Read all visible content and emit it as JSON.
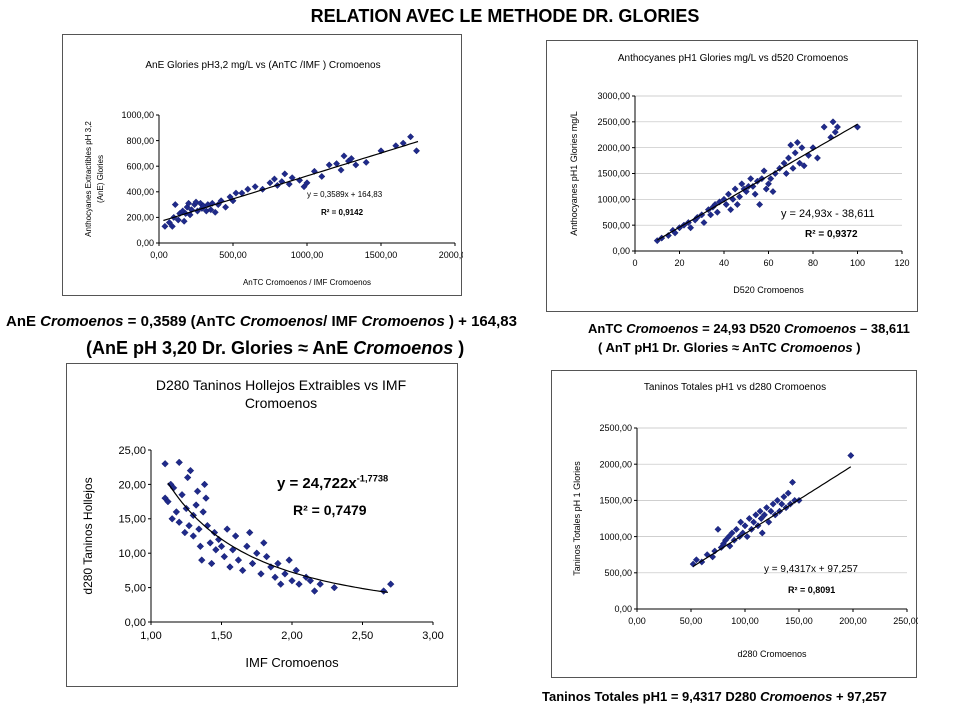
{
  "page_title": "RELATION AVEC LE METHODE DR. GLORIES",
  "captions": {
    "c1a": {
      "p1": "AnE ",
      "i1": "Cromoenos",
      "p2": " = 0,3589 (AnTC ",
      "i2": "Cromoenos",
      "p3": "/ IMF ",
      "i3": "Cromoenos",
      "p4": " ) + 164,83"
    },
    "c1b": {
      "p1": "(AnE pH 3,20 Dr. Glories ≈ AnE ",
      "i1": "Cromoenos",
      "p2": "  )"
    },
    "c2a": {
      "p1": "AnTC ",
      "i1": "Cromoenos",
      "p2": " = 24,93  D520 ",
      "i2": "Cromoenos",
      "p3": "  – 38,611"
    },
    "c2b": {
      "p1": "( AnT pH1 Dr. Glories ≈ AnTC ",
      "i1": "Cromoenos",
      "p2": " )"
    },
    "c3": {
      "p1": "Taninos Totales pH1 = 9,4317 D280 ",
      "i1": "Cromoenos",
      "p2": " + 97,257"
    }
  },
  "chart_data": [
    {
      "type": "scatter",
      "title": "AnE Glories pH3,2 mg/L vs (AnTC /IMF ) Cromoenos",
      "xlabel": "AnTC Cromoenos  / IMF Cromoenos",
      "ylabel_lines": [
        "Anthocyanes Extractibles  pH 3,2",
        "(AnE) Glories"
      ],
      "xlim": [
        0,
        2000
      ],
      "ylim": [
        0,
        1000
      ],
      "xticks": [
        0,
        500,
        1000,
        1500,
        2000
      ],
      "yticks": [
        0,
        200,
        400,
        600,
        800,
        1000
      ],
      "xtick_labels": [
        "0,00",
        "500,00",
        "1000,00",
        "1500,00",
        "2000,00"
      ],
      "ytick_labels": [
        "0,00",
        "200,00",
        "400,00",
        "600,00",
        "800,00",
        "1000,00"
      ],
      "grid": false,
      "equation": "y = 0,3589x + 164,83",
      "r2": "R² = 0,9142",
      "trend": {
        "kind": "linear",
        "a": 0.3589,
        "b": 164.83,
        "x_range": [
          30,
          1750
        ]
      },
      "points": [
        [
          40,
          130
        ],
        [
          70,
          160
        ],
        [
          90,
          130
        ],
        [
          100,
          200
        ],
        [
          110,
          300
        ],
        [
          130,
          180
        ],
        [
          140,
          230
        ],
        [
          160,
          250
        ],
        [
          170,
          170
        ],
        [
          180,
          230
        ],
        [
          190,
          280
        ],
        [
          200,
          310
        ],
        [
          210,
          220
        ],
        [
          220,
          260
        ],
        [
          240,
          300
        ],
        [
          250,
          320
        ],
        [
          260,
          250
        ],
        [
          280,
          310
        ],
        [
          290,
          270
        ],
        [
          300,
          290
        ],
        [
          320,
          250
        ],
        [
          330,
          300
        ],
        [
          350,
          260
        ],
        [
          360,
          310
        ],
        [
          380,
          240
        ],
        [
          400,
          300
        ],
        [
          420,
          330
        ],
        [
          450,
          280
        ],
        [
          480,
          360
        ],
        [
          500,
          330
        ],
        [
          520,
          390
        ],
        [
          560,
          390
        ],
        [
          600,
          420
        ],
        [
          650,
          440
        ],
        [
          700,
          420
        ],
        [
          750,
          470
        ],
        [
          780,
          500
        ],
        [
          800,
          450
        ],
        [
          830,
          480
        ],
        [
          850,
          540
        ],
        [
          880,
          460
        ],
        [
          900,
          510
        ],
        [
          950,
          490
        ],
        [
          980,
          440
        ],
        [
          1000,
          470
        ],
        [
          1050,
          560
        ],
        [
          1100,
          520
        ],
        [
          1150,
          610
        ],
        [
          1200,
          620
        ],
        [
          1230,
          570
        ],
        [
          1250,
          680
        ],
        [
          1280,
          640
        ],
        [
          1300,
          660
        ],
        [
          1330,
          610
        ],
        [
          1400,
          630
        ],
        [
          1500,
          720
        ],
        [
          1600,
          760
        ],
        [
          1650,
          780
        ],
        [
          1700,
          830
        ],
        [
          1740,
          720
        ]
      ]
    },
    {
      "type": "scatter",
      "title": "Anthocyanes pH1 Glories mg/L vs d520 Cromoenos",
      "xlabel": "D520 Cromoenos",
      "ylabel_lines": [
        "Anthocyanes pH1 Glories mg/L"
      ],
      "xlim": [
        0,
        120
      ],
      "ylim": [
        0,
        3000
      ],
      "xticks": [
        0,
        20,
        40,
        60,
        80,
        100,
        120
      ],
      "yticks": [
        0,
        500,
        1000,
        1500,
        2000,
        2500,
        3000
      ],
      "xtick_labels": [
        "0",
        "20",
        "40",
        "60",
        "80",
        "100",
        "120"
      ],
      "ytick_labels": [
        "0,00",
        "500,00",
        "1000,00",
        "1500,00",
        "2000,00",
        "2500,00",
        "3000,00"
      ],
      "grid": true,
      "equation": "y = 24,93x - 38,611",
      "r2": "R² = 0,9372",
      "trend": {
        "kind": "linear",
        "a": 24.93,
        "b": -38.611,
        "x_range": [
          10,
          100
        ]
      },
      "points": [
        [
          10,
          200
        ],
        [
          12,
          250
        ],
        [
          15,
          300
        ],
        [
          17,
          400
        ],
        [
          18,
          350
        ],
        [
          20,
          450
        ],
        [
          22,
          500
        ],
        [
          24,
          550
        ],
        [
          25,
          450
        ],
        [
          27,
          600
        ],
        [
          28,
          650
        ],
        [
          30,
          700
        ],
        [
          31,
          550
        ],
        [
          33,
          800
        ],
        [
          34,
          700
        ],
        [
          35,
          850
        ],
        [
          36,
          900
        ],
        [
          37,
          750
        ],
        [
          38,
          950
        ],
        [
          40,
          1000
        ],
        [
          41,
          900
        ],
        [
          42,
          1100
        ],
        [
          43,
          800
        ],
        [
          44,
          1000
        ],
        [
          45,
          1200
        ],
        [
          46,
          900
        ],
        [
          47,
          1050
        ],
        [
          48,
          1300
        ],
        [
          49,
          1200
        ],
        [
          50,
          1150
        ],
        [
          51,
          1250
        ],
        [
          52,
          1400
        ],
        [
          53,
          1250
        ],
        [
          54,
          1100
        ],
        [
          55,
          1350
        ],
        [
          56,
          900
        ],
        [
          57,
          1400
        ],
        [
          58,
          1550
        ],
        [
          59,
          1200
        ],
        [
          60,
          1300
        ],
        [
          61,
          1400
        ],
        [
          62,
          1150
        ],
        [
          63,
          1500
        ],
        [
          65,
          1600
        ],
        [
          67,
          1700
        ],
        [
          68,
          1500
        ],
        [
          69,
          1800
        ],
        [
          70,
          2050
        ],
        [
          71,
          1600
        ],
        [
          72,
          1900
        ],
        [
          73,
          2100
        ],
        [
          74,
          1700
        ],
        [
          75,
          2000
        ],
        [
          76,
          1650
        ],
        [
          78,
          1850
        ],
        [
          80,
          2000
        ],
        [
          82,
          1800
        ],
        [
          85,
          2400
        ],
        [
          88,
          2200
        ],
        [
          89,
          2500
        ],
        [
          90,
          2300
        ],
        [
          91,
          2400
        ],
        [
          100,
          2400
        ]
      ]
    },
    {
      "type": "scatter",
      "title": "D280 Taninos Hollejos Extraibles vs IMF Cromoenos",
      "title_lines": [
        "D280 Taninos Hollejos Extraibles vs IMF",
        "Cromoenos"
      ],
      "xlabel": "IMF Cromoenos",
      "ylabel_lines": [
        "d280 Taninos Hollejos"
      ],
      "xlim": [
        1,
        3
      ],
      "ylim": [
        0,
        25
      ],
      "xticks": [
        1,
        1.5,
        2,
        2.5,
        3
      ],
      "yticks": [
        0,
        5,
        10,
        15,
        20,
        25
      ],
      "xtick_labels": [
        "1,00",
        "1,50",
        "2,00",
        "2,50",
        "3,00"
      ],
      "ytick_labels": [
        "0,00",
        "5,00",
        "10,00",
        "15,00",
        "20,00",
        "25,00"
      ],
      "grid": false,
      "equation": "y = 24,722x",
      "equation_exp": "-1,7738",
      "r2": "R² = 0,7479",
      "trend": {
        "kind": "power",
        "a": 24.722,
        "b": -1.7738,
        "x_range": [
          1.12,
          2.68
        ]
      },
      "points": [
        [
          1.1,
          23.0
        ],
        [
          1.1,
          18.0
        ],
        [
          1.12,
          17.5
        ],
        [
          1.14,
          20.0
        ],
        [
          1.15,
          15.0
        ],
        [
          1.16,
          19.5
        ],
        [
          1.18,
          16.0
        ],
        [
          1.2,
          23.2
        ],
        [
          1.2,
          14.5
        ],
        [
          1.22,
          18.5
        ],
        [
          1.24,
          13.0
        ],
        [
          1.25,
          16.5
        ],
        [
          1.26,
          21.0
        ],
        [
          1.27,
          14.0
        ],
        [
          1.28,
          22.0
        ],
        [
          1.3,
          15.5
        ],
        [
          1.3,
          12.5
        ],
        [
          1.32,
          17.0
        ],
        [
          1.33,
          19.0
        ],
        [
          1.34,
          13.5
        ],
        [
          1.35,
          11.0
        ],
        [
          1.36,
          9.0
        ],
        [
          1.37,
          16.0
        ],
        [
          1.38,
          20.0
        ],
        [
          1.39,
          18.0
        ],
        [
          1.4,
          14.0
        ],
        [
          1.42,
          11.5
        ],
        [
          1.43,
          8.5
        ],
        [
          1.45,
          13.0
        ],
        [
          1.46,
          10.5
        ],
        [
          1.48,
          12.0
        ],
        [
          1.5,
          11.0
        ],
        [
          1.52,
          9.5
        ],
        [
          1.54,
          13.5
        ],
        [
          1.56,
          8.0
        ],
        [
          1.58,
          10.5
        ],
        [
          1.6,
          12.5
        ],
        [
          1.62,
          9.0
        ],
        [
          1.65,
          7.5
        ],
        [
          1.68,
          11.0
        ],
        [
          1.7,
          13.0
        ],
        [
          1.72,
          8.5
        ],
        [
          1.75,
          10.0
        ],
        [
          1.78,
          7.0
        ],
        [
          1.8,
          11.5
        ],
        [
          1.82,
          9.5
        ],
        [
          1.85,
          8.0
        ],
        [
          1.88,
          6.5
        ],
        [
          1.9,
          8.5
        ],
        [
          1.92,
          5.5
        ],
        [
          1.95,
          7.0
        ],
        [
          1.98,
          9.0
        ],
        [
          2.0,
          6.0
        ],
        [
          2.03,
          7.5
        ],
        [
          2.05,
          5.5
        ],
        [
          2.1,
          6.5
        ],
        [
          2.13,
          6.0
        ],
        [
          2.16,
          4.5
        ],
        [
          2.2,
          5.5
        ],
        [
          2.3,
          5.0
        ],
        [
          2.65,
          4.5
        ],
        [
          2.7,
          5.5
        ]
      ]
    },
    {
      "type": "scatter",
      "title": "Taninos Totales pH1 vs d280 Cromoenos",
      "xlabel": "d280 Cromoenos",
      "ylabel_lines": [
        "Taninos Totales pH 1 Glories"
      ],
      "xlim": [
        0,
        250
      ],
      "ylim": [
        0,
        2500
      ],
      "xticks": [
        0,
        50,
        100,
        150,
        200,
        250
      ],
      "yticks": [
        0,
        500,
        1000,
        1500,
        2000,
        2500
      ],
      "xtick_labels": [
        "0,00",
        "50,00",
        "100,00",
        "150,00",
        "200,00",
        "250,00"
      ],
      "ytick_labels": [
        "0,00",
        "500,00",
        "1000,00",
        "1500,00",
        "2000,00",
        "2500,00"
      ],
      "grid": true,
      "equation": "y = 9,4317x + 97,257",
      "r2": "R² = 0,8091",
      "trend": {
        "kind": "linear",
        "a": 9.4317,
        "b": 97.257,
        "x_range": [
          52,
          198
        ]
      },
      "points": [
        [
          52,
          620
        ],
        [
          55,
          680
        ],
        [
          60,
          650
        ],
        [
          65,
          750
        ],
        [
          70,
          720
        ],
        [
          72,
          800
        ],
        [
          75,
          1100
        ],
        [
          78,
          850
        ],
        [
          80,
          900
        ],
        [
          82,
          950
        ],
        [
          85,
          1000
        ],
        [
          86,
          870
        ],
        [
          88,
          1050
        ],
        [
          90,
          950
        ],
        [
          92,
          1100
        ],
        [
          95,
          1000
        ],
        [
          96,
          1200
        ],
        [
          98,
          1050
        ],
        [
          100,
          1150
        ],
        [
          102,
          1000
        ],
        [
          104,
          1250
        ],
        [
          106,
          1100
        ],
        [
          108,
          1200
        ],
        [
          110,
          1300
        ],
        [
          112,
          1150
        ],
        [
          114,
          1350
        ],
        [
          115,
          1250
        ],
        [
          116,
          1050
        ],
        [
          118,
          1300
        ],
        [
          120,
          1400
        ],
        [
          122,
          1200
        ],
        [
          124,
          1350
        ],
        [
          126,
          1450
        ],
        [
          128,
          1300
        ],
        [
          130,
          1500
        ],
        [
          132,
          1350
        ],
        [
          134,
          1450
        ],
        [
          136,
          1550
        ],
        [
          138,
          1400
        ],
        [
          140,
          1600
        ],
        [
          142,
          1450
        ],
        [
          144,
          1750
        ],
        [
          146,
          1500
        ],
        [
          150,
          1500
        ],
        [
          198,
          2120
        ]
      ]
    }
  ]
}
